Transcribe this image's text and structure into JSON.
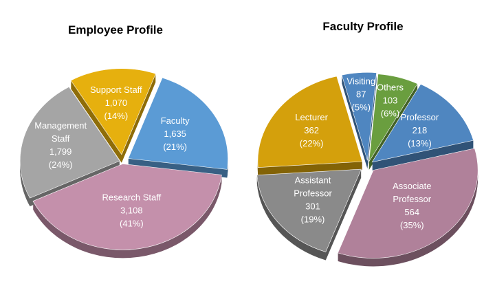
{
  "chart_data": [
    {
      "type": "pie",
      "title": "Employee Profile",
      "slices": [
        {
          "label": [
            "Faculty"
          ],
          "value": 1635,
          "value_text": "1,635",
          "percent_text": "(21%)",
          "color": "#5b9bd5"
        },
        {
          "label": [
            "Research Staff"
          ],
          "value": 3108,
          "value_text": "3,108",
          "percent_text": "(41%)",
          "color": "#c490ab"
        },
        {
          "label": [
            "Management",
            "Staff"
          ],
          "value": 1799,
          "value_text": "1,799",
          "percent_text": "(24%)",
          "color": "#a5a5a5"
        },
        {
          "label": [
            "Support Staff"
          ],
          "value": 1070,
          "value_text": "1,070",
          "percent_text": "(14%)",
          "color": "#e6b00e"
        }
      ]
    },
    {
      "type": "pie",
      "title": "Faculty Profile",
      "slices": [
        {
          "label": [
            "Others"
          ],
          "value": 103,
          "value_text": "103",
          "percent_text": "(6%)",
          "color": "#6a9e3f"
        },
        {
          "label": [
            "Professor"
          ],
          "value": 218,
          "value_text": "218",
          "percent_text": "(13%)",
          "color": "#4f86c0"
        },
        {
          "label": [
            "Associate",
            "Professor"
          ],
          "value": 564,
          "value_text": "564",
          "percent_text": "(35%)",
          "color": "#b0819a"
        },
        {
          "label": [
            "Assistant",
            "Professor"
          ],
          "value": 301,
          "value_text": "301",
          "percent_text": "(19%)",
          "color": "#8a8a8a"
        },
        {
          "label": [
            "Lecturer"
          ],
          "value": 362,
          "value_text": "362",
          "percent_text": "(22%)",
          "color": "#d4a00c"
        },
        {
          "label": [
            "Visiting"
          ],
          "value": 87,
          "value_text": "87",
          "percent_text": "(5%)",
          "color": "#4f86c0"
        }
      ]
    }
  ]
}
